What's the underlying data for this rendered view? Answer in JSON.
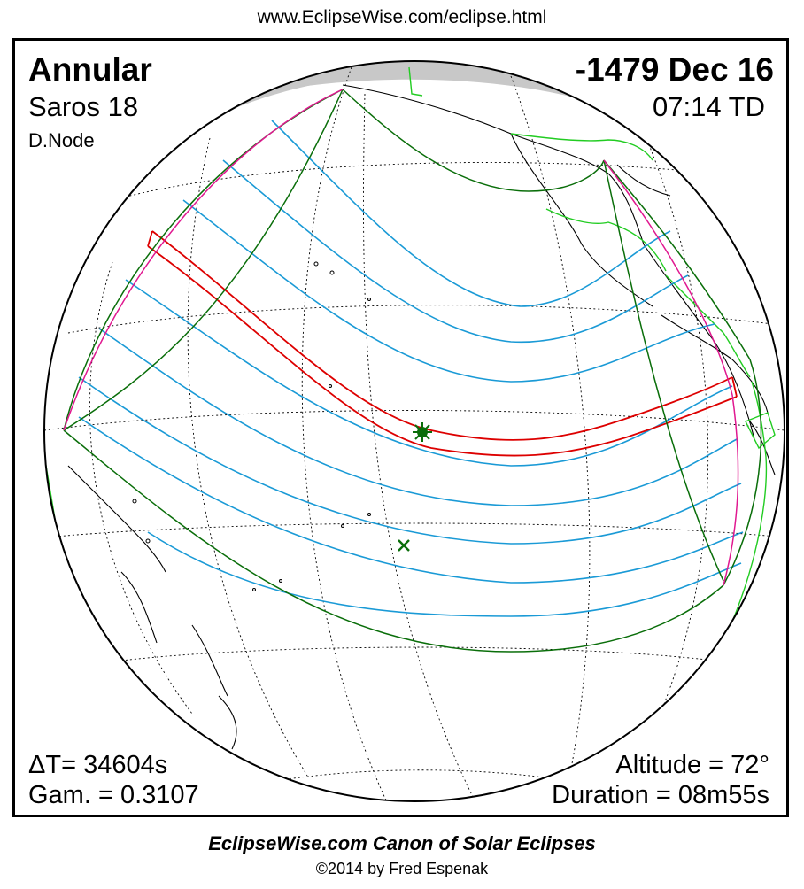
{
  "header": {
    "url": "www.EclipseWise.com/eclipse.html"
  },
  "eclipse": {
    "type": "Annular",
    "date": "-1479 Dec 16",
    "saros": "Saros  18",
    "time": "07:14 TD",
    "node": "D.Node",
    "delta_t": "ΔT=  34604s",
    "gamma": "Gam. = 0.3107",
    "altitude": "Altitude = 72°",
    "duration": "Duration = 08m55s"
  },
  "map": {
    "colors": {
      "globe_outline": "#000000",
      "night_shade": "#c8c8c8",
      "graticule": "#000000",
      "coast": "#000000",
      "modern_coast": "#22cc22",
      "central_path": "#dd0000",
      "penumbral_limits": "#1a9ad6",
      "boundary": "#0a6e0a",
      "rise_set": "#e01890",
      "max_marker": "#0a6e0a"
    },
    "icons": {
      "greatest_eclipse": "star-burst-icon",
      "subsolar_point": "x-cross-icon"
    }
  },
  "footer": {
    "title": "EclipseWise.com Canon of Solar Eclipses",
    "copyright": "©2014 by Fred Espenak"
  }
}
